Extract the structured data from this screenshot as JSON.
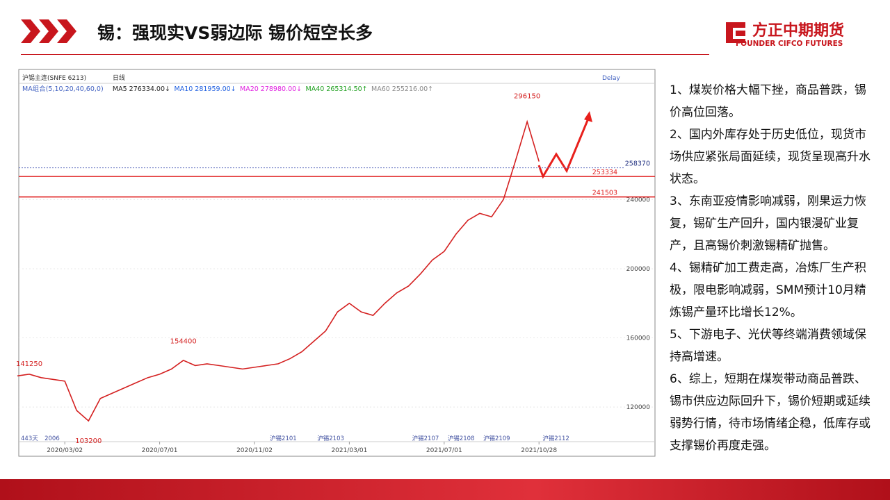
{
  "header": {
    "title": "锡：强现实VS弱边际 锡价短空长多",
    "logo": "方正中期期货",
    "logo_en": "FOUNDER CIFCO FUTURES"
  },
  "notes": [
    "1、煤炭价格大幅下挫，商品普跌，锡价高位回落。",
    "2、国内外库存处于历史低位，现货市场供应紧张局面延续，现货呈现高升水状态。",
    "3、东南亚疫情影响减弱，刚果运力恢复，锡矿生产回升，国内银漫矿业复产，且高锡价刺激锡精矿抛售。",
    "4、锡精矿加工费走高，冶炼厂生产积极，限电影响减弱，SMM预计10月精炼锡产量环比增长12%。",
    "5、下游电子、光伏等终端消费领域保持高增速。",
    "6、综上，短期在煤炭带动商品普跌、锡市供应边际回升下，锡价短期或延续弱势行情，待市场情绪企稳，低库存或支撑锡价再度走强。"
  ],
  "chart_data": {
    "type": "line",
    "toolbar": [
      "沪锡主连(SNFE 6213)",
      "日线",
      "Delay"
    ],
    "ma_legend": [
      {
        "text": "MA组合(5,10,20,40,60,0)",
        "color": "#4060c0"
      },
      {
        "text": "MA5 276334.00↓",
        "color": "#222"
      },
      {
        "text": "MA10 281959.00↓",
        "color": "#2060e0"
      },
      {
        "text": "MA20 278980.00↓",
        "color": "#e020e0"
      },
      {
        "text": "MA40 265314.50↑",
        "color": "#20a020"
      },
      {
        "text": "MA60 255216.00↑",
        "color": "#888"
      }
    ],
    "categories": [
      null,
      null,
      null,
      null,
      "2020/03/02",
      null,
      null,
      null,
      null,
      null,
      null,
      null,
      "2020/07/01",
      null,
      null,
      null,
      null,
      null,
      null,
      null,
      "2020/11/02",
      null,
      null,
      null,
      null,
      null,
      null,
      null,
      "2021/03/01",
      null,
      null,
      null,
      null,
      null,
      null,
      null,
      "2021/07/01",
      null,
      null,
      null,
      null,
      null,
      null,
      null,
      "2021/10/28"
    ],
    "series": [
      {
        "name": "沪锡主连",
        "color": "#d42020",
        "values": [
          138000,
          139000,
          137000,
          136000,
          135000,
          118000,
          112000,
          125000,
          128000,
          131000,
          134000,
          137000,
          139000,
          142000,
          147000,
          144000,
          145000,
          144000,
          143000,
          142000,
          143000,
          144000,
          145000,
          148000,
          152000,
          158000,
          164000,
          175000,
          180000,
          175000,
          173000,
          180000,
          186000,
          190000,
          197000,
          205000,
          210000,
          220000,
          228000,
          232000,
          230000,
          240000,
          262000,
          285000,
          262000
        ]
      }
    ],
    "ylim": [
      104000,
      308000
    ],
    "yticks": [
      120000,
      160000,
      200000,
      240000
    ],
    "hlines": [
      {
        "value": 253334,
        "label": "253334",
        "color": "#e02020"
      },
      {
        "value": 241503,
        "label": "241503",
        "color": "#e02020"
      },
      {
        "value": 258370,
        "label": "258370",
        "color": "#6070c0"
      }
    ],
    "annotations": [
      {
        "label": "141250",
        "x": 1,
        "y": 141250
      },
      {
        "label": "154400",
        "x": 14,
        "y": 154400
      },
      {
        "label": "103200",
        "x": 6,
        "y": 103200
      },
      {
        "label": "296150",
        "x": 43,
        "y": 296150
      }
    ],
    "contracts": [
      {
        "label": "443天",
        "x": 0
      },
      {
        "label": "2006",
        "x": 2
      },
      {
        "label": "沪锡2101",
        "x": 21
      },
      {
        "label": "沪锡2103",
        "x": 25
      },
      {
        "label": "沪锡2107",
        "x": 33
      },
      {
        "label": "沪锡2108",
        "x": 36
      },
      {
        "label": "沪锡2109",
        "x": 39
      },
      {
        "label": "沪锡2112",
        "x": 44
      }
    ]
  }
}
